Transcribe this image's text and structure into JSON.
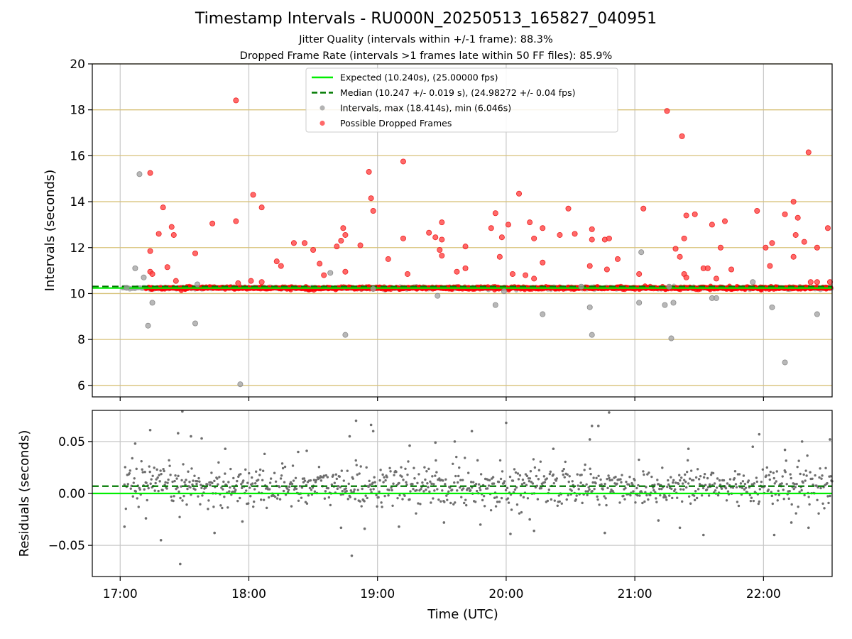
{
  "chart_data": [
    {
      "type": "scatter",
      "title": "Timestamp Intervals - RU000N_20250513_165827_040951",
      "subtitle_1": "Jitter Quality (intervals within +/-1 frame): 88.3%",
      "subtitle_2": "Dropped Frame Rate (intervals >1 frames late within 50 FF files): 85.9%",
      "ylabel": "Intervals (seconds)",
      "ylim": [
        5.5,
        20
      ],
      "xlim": [
        "16:47",
        "22:32"
      ],
      "yticks": [
        6,
        8,
        10,
        12,
        14,
        16,
        18,
        20
      ],
      "grid": true,
      "legend_position": "top-center",
      "expected_interval": 10.24,
      "median_interval": 10.247,
      "legend": [
        {
          "label": "Expected (10.240s), (25.00000 fps)",
          "style": "solid-line",
          "color": "#00ee00"
        },
        {
          "label": "Median (10.247 +/- 0.019 s), (24.98272 +/- 0.04 fps)",
          "style": "dashed-line",
          "color": "#007a00"
        },
        {
          "label": "Intervals, max (18.414s), min (6.046s)",
          "style": "marker",
          "color": "#a0a0a0"
        },
        {
          "label": "Possible Dropped Frames",
          "style": "marker",
          "color": "#ff4444"
        }
      ],
      "series": [
        {
          "name": "Intervals, max (18.414s), min (6.046s)",
          "color": "#a0a0a0",
          "points": [
            [
              "17:03",
              10.25
            ],
            [
              "17:07",
              11.1
            ],
            [
              "17:09",
              15.2
            ],
            [
              "17:11",
              10.7
            ],
            [
              "17:13",
              8.6
            ],
            [
              "17:15",
              9.6
            ],
            [
              "17:35",
              8.7
            ],
            [
              "17:36",
              10.4
            ],
            [
              "17:56",
              6.05
            ],
            [
              "18:38",
              10.9
            ],
            [
              "18:45",
              8.2
            ],
            [
              "18:58",
              10.2
            ],
            [
              "19:28",
              9.9
            ],
            [
              "19:55",
              9.5
            ],
            [
              "19:59",
              10.1
            ],
            [
              "20:17",
              9.1
            ],
            [
              "20:35",
              10.3
            ],
            [
              "20:39",
              9.4
            ],
            [
              "20:40",
              8.2
            ],
            [
              "21:02",
              9.6
            ],
            [
              "21:03",
              11.8
            ],
            [
              "21:14",
              9.5
            ],
            [
              "21:16",
              10.3
            ],
            [
              "21:18",
              9.6
            ],
            [
              "21:17",
              8.05
            ],
            [
              "21:36",
              9.8
            ],
            [
              "21:38",
              9.8
            ],
            [
              "21:55",
              10.5
            ],
            [
              "22:04",
              9.4
            ],
            [
              "22:10",
              7.0
            ],
            [
              "22:25",
              9.1
            ]
          ]
        },
        {
          "name": "Possible Dropped Frames",
          "color": "#ff4444",
          "points": [
            [
              "17:14",
              15.25
            ],
            [
              "17:14",
              11.85
            ],
            [
              "17:14",
              10.95
            ],
            [
              "17:15",
              10.85
            ],
            [
              "17:18",
              12.6
            ],
            [
              "17:20",
              13.75
            ],
            [
              "17:22",
              11.15
            ],
            [
              "17:24",
              12.9
            ],
            [
              "17:25",
              12.55
            ],
            [
              "17:26",
              10.55
            ],
            [
              "17:35",
              11.75
            ],
            [
              "17:43",
              13.05
            ],
            [
              "17:54",
              18.41
            ],
            [
              "17:54",
              13.15
            ],
            [
              "17:55",
              10.45
            ],
            [
              "18:01",
              10.55
            ],
            [
              "18:02",
              14.3
            ],
            [
              "18:06",
              13.75
            ],
            [
              "18:06",
              10.5
            ],
            [
              "18:13",
              11.4
            ],
            [
              "18:15",
              11.2
            ],
            [
              "18:21",
              12.2
            ],
            [
              "18:26",
              12.2
            ],
            [
              "18:30",
              11.9
            ],
            [
              "18:33",
              11.3
            ],
            [
              "18:35",
              10.8
            ],
            [
              "18:41",
              12.05
            ],
            [
              "18:43",
              12.3
            ],
            [
              "18:44",
              12.85
            ],
            [
              "18:45",
              12.55
            ],
            [
              "18:45",
              10.95
            ],
            [
              "18:52",
              12.1
            ],
            [
              "18:56",
              15.3
            ],
            [
              "18:57",
              14.15
            ],
            [
              "18:58",
              13.6
            ],
            [
              "19:05",
              11.5
            ],
            [
              "19:12",
              15.75
            ],
            [
              "19:12",
              12.4
            ],
            [
              "19:14",
              10.85
            ],
            [
              "19:24",
              12.65
            ],
            [
              "19:27",
              12.45
            ],
            [
              "19:29",
              11.9
            ],
            [
              "19:30",
              13.1
            ],
            [
              "19:30",
              11.65
            ],
            [
              "19:30",
              12.35
            ],
            [
              "19:37",
              10.95
            ],
            [
              "19:41",
              12.05
            ],
            [
              "19:41",
              11.1
            ],
            [
              "19:53",
              12.85
            ],
            [
              "19:55",
              13.5
            ],
            [
              "19:57",
              11.6
            ],
            [
              "19:58",
              12.45
            ],
            [
              "20:01",
              13.0
            ],
            [
              "20:03",
              10.85
            ],
            [
              "20:06",
              14.35
            ],
            [
              "20:09",
              10.8
            ],
            [
              "20:11",
              13.1
            ],
            [
              "20:13",
              12.4
            ],
            [
              "20:13",
              10.65
            ],
            [
              "20:17",
              12.85
            ],
            [
              "20:17",
              11.35
            ],
            [
              "20:25",
              12.55
            ],
            [
              "20:29",
              13.7
            ],
            [
              "20:32",
              12.6
            ],
            [
              "20:39",
              11.2
            ],
            [
              "20:40",
              12.8
            ],
            [
              "20:40",
              12.35
            ],
            [
              "20:46",
              12.35
            ],
            [
              "20:48",
              12.4
            ],
            [
              "20:47",
              11.05
            ],
            [
              "20:52",
              11.5
            ],
            [
              "21:02",
              10.85
            ],
            [
              "21:04",
              13.7
            ],
            [
              "21:15",
              17.95
            ],
            [
              "21:19",
              11.95
            ],
            [
              "21:21",
              11.6
            ],
            [
              "21:22",
              16.85
            ],
            [
              "21:23",
              12.4
            ],
            [
              "21:24",
              13.4
            ],
            [
              "21:23",
              10.85
            ],
            [
              "21:24",
              10.7
            ],
            [
              "21:28",
              13.45
            ],
            [
              "21:32",
              11.1
            ],
            [
              "21:34",
              11.1
            ],
            [
              "21:36",
              13.0
            ],
            [
              "21:38",
              10.65
            ],
            [
              "21:40",
              12.0
            ],
            [
              "21:42",
              13.15
            ],
            [
              "21:45",
              11.05
            ],
            [
              "21:57",
              13.6
            ],
            [
              "22:01",
              12.0
            ],
            [
              "22:03",
              11.2
            ],
            [
              "22:04",
              12.2
            ],
            [
              "22:10",
              13.45
            ],
            [
              "22:14",
              14.0
            ],
            [
              "22:14",
              11.6
            ],
            [
              "22:15",
              12.55
            ],
            [
              "22:16",
              13.3
            ],
            [
              "22:19",
              12.25
            ],
            [
              "22:21",
              16.15
            ],
            [
              "22:22",
              10.5
            ],
            [
              "22:25",
              12.0
            ],
            [
              "22:25",
              10.5
            ],
            [
              "22:30",
              12.85
            ],
            [
              "22:31",
              10.5
            ]
          ]
        }
      ],
      "dense_band": {
        "value": 10.24,
        "spread": 0.06,
        "color": "#ff0000",
        "span": [
          "17:12",
          "22:32"
        ]
      }
    },
    {
      "type": "scatter",
      "ylabel": "Residuals (seconds)",
      "xlabel": "Time (UTC)",
      "ylim": [
        -0.08,
        0.08
      ],
      "yticks": [
        -0.05,
        0.0,
        0.05
      ],
      "ytick_labels": [
        "−0.05",
        "0.00",
        "0.05"
      ],
      "xticks": [
        "17:00",
        "18:00",
        "19:00",
        "20:00",
        "21:00",
        "22:00"
      ],
      "grid": true,
      "expected_residual": 0.0,
      "median_residual": 0.007,
      "series": [
        {
          "name": "",
          "color": "#6e6e6e",
          "points": [
            [
              "17:02",
              -0.032
            ],
            [
              "17:07",
              0.048
            ],
            [
              "17:12",
              -0.024
            ],
            [
              "17:14",
              0.061
            ],
            [
              "17:19",
              -0.045
            ],
            [
              "17:27",
              0.058
            ],
            [
              "17:29",
              0.079
            ],
            [
              "17:28",
              -0.068
            ],
            [
              "17:33",
              0.055
            ],
            [
              "17:38",
              0.053
            ],
            [
              "17:44",
              -0.038
            ],
            [
              "17:49",
              0.043
            ],
            [
              "17:57",
              -0.027
            ],
            [
              "18:23",
              0.04
            ],
            [
              "18:27",
              0.041
            ],
            [
              "18:43",
              -0.033
            ],
            [
              "18:47",
              0.055
            ],
            [
              "18:48",
              -0.06
            ],
            [
              "18:50",
              0.07
            ],
            [
              "18:54",
              -0.034
            ],
            [
              "18:57",
              0.066
            ],
            [
              "18:58",
              0.06
            ],
            [
              "19:10",
              -0.032
            ],
            [
              "19:15",
              0.046
            ],
            [
              "19:27",
              0.049
            ],
            [
              "19:31",
              -0.028
            ],
            [
              "19:36",
              0.05
            ],
            [
              "19:44",
              0.06
            ],
            [
              "19:48",
              -0.03
            ],
            [
              "20:00",
              0.068
            ],
            [
              "20:02",
              -0.039
            ],
            [
              "20:11",
              -0.025
            ],
            [
              "20:13",
              -0.036
            ],
            [
              "20:22",
              0.043
            ],
            [
              "20:39",
              0.052
            ],
            [
              "20:40",
              0.065
            ],
            [
              "20:43",
              0.065
            ],
            [
              "20:46",
              -0.038
            ],
            [
              "20:48",
              0.078
            ],
            [
              "21:11",
              -0.026
            ],
            [
              "21:21",
              -0.033
            ],
            [
              "21:25",
              0.043
            ],
            [
              "21:32",
              -0.04
            ],
            [
              "21:55",
              0.045
            ],
            [
              "21:58",
              0.057
            ],
            [
              "22:05",
              -0.04
            ],
            [
              "22:10",
              0.042
            ],
            [
              "22:13",
              -0.028
            ],
            [
              "22:18",
              0.05
            ],
            [
              "22:21",
              -0.033
            ],
            [
              "22:31",
              0.052
            ]
          ]
        }
      ],
      "dense_cloud": {
        "center": 0.007,
        "spread": 0.018,
        "color": "#6e6e6e",
        "span": [
          "17:02",
          "22:32"
        ]
      }
    }
  ]
}
